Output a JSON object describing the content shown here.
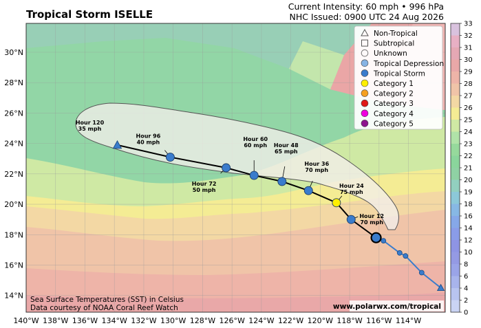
{
  "header": {
    "title": "Tropical Storm ISELLE",
    "intensity": "Current Intensity: 60 mph • 996 hPa",
    "issued": "NHC Issued: 0900 UTC 24 Aug 2026"
  },
  "axes": {
    "lat_labels": [
      "30°N",
      "28°N",
      "26°N",
      "24°N",
      "22°N",
      "20°N",
      "18°N",
      "16°N",
      "14°N"
    ],
    "lat_values": [
      30,
      28,
      26,
      24,
      22,
      20,
      18,
      16,
      14
    ],
    "lon_labels": [
      "140°W",
      "138°W",
      "136°W",
      "134°W",
      "132°W",
      "130°W",
      "128°W",
      "126°W",
      "124°W",
      "122°W",
      "120°W",
      "118°W",
      "116°W",
      "114°W"
    ],
    "lon_values": [
      -140,
      -138,
      -136,
      -134,
      -132,
      -130,
      -128,
      -126,
      -124,
      -122,
      -120,
      -118,
      -116,
      -114
    ],
    "lon_range": [
      -140,
      -111.5
    ],
    "lat_range": [
      12.9,
      31.9
    ]
  },
  "colorbar": {
    "ticks": [
      "33",
      "32",
      "31",
      "30",
      "29",
      "28",
      "27",
      "26",
      "25",
      "24",
      "23",
      "22",
      "21",
      "20",
      "19",
      "18",
      "16",
      "14",
      "12",
      "10",
      "8",
      "6",
      "4",
      "2",
      "0"
    ],
    "colors": [
      "#d9c2de",
      "#e8b0c4",
      "#e5a8b4",
      "#e9a8a8",
      "#eeb4a8",
      "#f0c4a8",
      "#f3d8a4",
      "#f4ec94",
      "#cfe9a4",
      "#b0e3a8",
      "#96d99c",
      "#8ad59c",
      "#8fd1a4",
      "#92cfbf",
      "#8cc8d8",
      "#87b8e4",
      "#86a8e8",
      "#8a9ce8",
      "#8e94e4",
      "#949ae4",
      "#9aa4e8",
      "#a8b4ec",
      "#b8c4f0",
      "#cad4f4",
      "#dfe5f8"
    ]
  },
  "legend": {
    "items": [
      {
        "label": "Non-Tropical",
        "symbol": "triangle"
      },
      {
        "label": "Subtropical",
        "symbol": "square"
      },
      {
        "label": "Unknown",
        "symbol": "circle-empty"
      },
      {
        "label": "Tropical Depression",
        "symbol": "circle",
        "color": "#86b4e4"
      },
      {
        "label": "Tropical Storm",
        "symbol": "circle",
        "color": "#3a7ccc"
      },
      {
        "label": "Category 1",
        "symbol": "circle",
        "color": "#ffef00"
      },
      {
        "label": "Category 2",
        "symbol": "circle",
        "color": "#f5a020"
      },
      {
        "label": "Category 3",
        "symbol": "circle",
        "color": "#e01818"
      },
      {
        "label": "Category 4",
        "symbol": "circle",
        "color": "#f000e0"
      },
      {
        "label": "Category 5",
        "symbol": "circle",
        "color": "#8e148e"
      }
    ]
  },
  "forecast": [
    {
      "hour": "Hour 12",
      "speed": "70 mph",
      "lon": -117.9,
      "lat": 19.0,
      "color": "#3a7ccc"
    },
    {
      "hour": "Hour 24",
      "speed": "75 mph",
      "lon": -118.9,
      "lat": 20.1,
      "color": "#ffef00"
    },
    {
      "hour": "Hour 36",
      "speed": "70 mph",
      "lon": -120.8,
      "lat": 20.9,
      "color": "#3a7ccc"
    },
    {
      "hour": "Hour 48",
      "speed": "65 mph",
      "lon": -122.6,
      "lat": 21.5,
      "color": "#3a7ccc"
    },
    {
      "hour": "Hour 60",
      "speed": "60 mph",
      "lon": -124.5,
      "lat": 21.9,
      "color": "#3a7ccc"
    },
    {
      "hour": "Hour 72",
      "speed": "50 mph",
      "lon": -126.4,
      "lat": 22.4,
      "color": "#3a7ccc"
    },
    {
      "hour": "Hour 96",
      "speed": "40 mph",
      "lon": -130.2,
      "lat": 23.1,
      "color": "#3a7ccc"
    },
    {
      "hour": "Hour 120",
      "speed": "35 mph",
      "lon": -133.8,
      "lat": 23.9,
      "color": "#3a7ccc"
    }
  ],
  "current_position": {
    "lon": -116.2,
    "lat": 17.8
  },
  "past_track": [
    {
      "lon": -111.8,
      "lat": 14.5,
      "symbol": "triangle"
    },
    {
      "lon": -113.1,
      "lat": 15.5,
      "symbol": "circle"
    },
    {
      "lon": -114.2,
      "lat": 16.6,
      "symbol": "circle"
    },
    {
      "lon": -114.6,
      "lat": 16.8,
      "symbol": "circle"
    },
    {
      "lon": -115.7,
      "lat": 17.6,
      "symbol": "circle"
    }
  ],
  "footer": {
    "sst_line1": "Sea Surface Temperatures (SST) in Celsius",
    "sst_line2": "Data courtesy of NOAA Coral Reef Watch",
    "website": "www.polarwx.com/tropical"
  }
}
